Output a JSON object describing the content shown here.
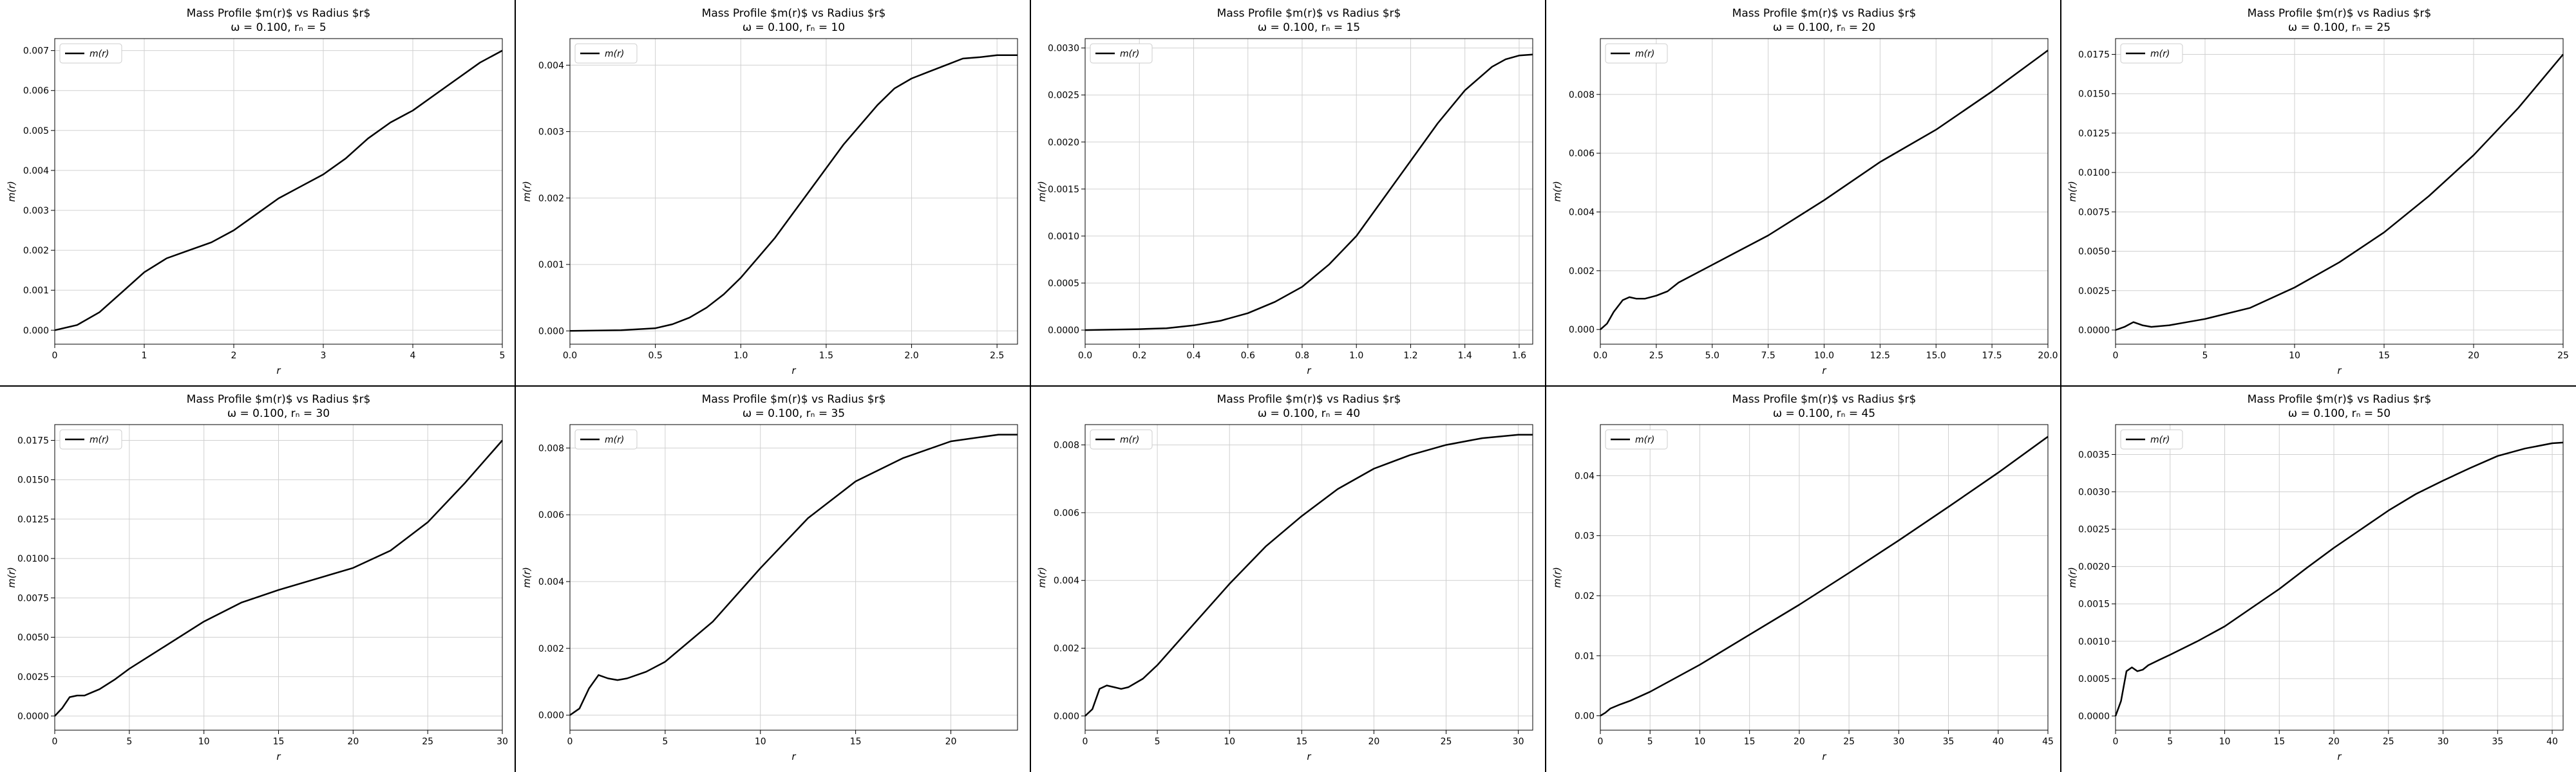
{
  "chart_data": [
    {
      "type": "line",
      "title": "Mass Profile $m(r)$ vs Radius $r$",
      "subtitle": "ω = 0.100, rₙ = 5",
      "xlabel": "r",
      "ylabel": "m(r)",
      "legend": "top-left",
      "grid": true,
      "xlim": [
        0,
        5
      ],
      "ylim": [
        -0.00035,
        0.0073
      ],
      "xticks": [
        0,
        1,
        2,
        3,
        4,
        5
      ],
      "yticks": [
        0.0,
        0.001,
        0.002,
        0.003,
        0.004,
        0.005,
        0.006,
        0.007
      ],
      "ydec": 3,
      "series": [
        {
          "name": "m(r)",
          "x": [
            0,
            0.25,
            0.5,
            0.75,
            1.0,
            1.25,
            1.5,
            1.75,
            2.0,
            2.25,
            2.5,
            2.75,
            3.0,
            3.25,
            3.5,
            3.75,
            4.0,
            4.25,
            4.5,
            4.75,
            5.0
          ],
          "y": [
            0,
            0.00013,
            0.00045,
            0.00095,
            0.00145,
            0.0018,
            0.002,
            0.0022,
            0.0025,
            0.0029,
            0.0033,
            0.0036,
            0.0039,
            0.0043,
            0.0048,
            0.0052,
            0.0055,
            0.0059,
            0.0063,
            0.0067,
            0.007
          ]
        }
      ]
    },
    {
      "type": "line",
      "title": "Mass Profile $m(r)$ vs Radius $r$",
      "subtitle": "ω = 0.100, rₙ = 10",
      "xlabel": "r",
      "ylabel": "m(r)",
      "legend": "top-left",
      "grid": true,
      "xlim": [
        0,
        2.62
      ],
      "ylim": [
        -0.0002,
        0.0044
      ],
      "xticks": [
        0,
        0.5,
        1.0,
        1.5,
        2.0,
        2.5
      ],
      "yticks": [
        0.0,
        0.001,
        0.002,
        0.003,
        0.004
      ],
      "ydec": 3,
      "xdec": 1,
      "series": [
        {
          "name": "m(r)",
          "x": [
            0,
            0.3,
            0.5,
            0.6,
            0.7,
            0.8,
            0.9,
            1.0,
            1.1,
            1.2,
            1.3,
            1.4,
            1.5,
            1.6,
            1.7,
            1.8,
            1.9,
            2.0,
            2.1,
            2.2,
            2.3,
            2.4,
            2.5,
            2.62
          ],
          "y": [
            0,
            1e-05,
            4e-05,
            0.0001,
            0.0002,
            0.00035,
            0.00055,
            0.0008,
            0.0011,
            0.0014,
            0.00175,
            0.0021,
            0.00245,
            0.0028,
            0.0031,
            0.0034,
            0.00365,
            0.0038,
            0.0039,
            0.004,
            0.0041,
            0.00412,
            0.00415,
            0.00415
          ]
        }
      ]
    },
    {
      "type": "line",
      "title": "Mass Profile $m(r)$ vs Radius $r$",
      "subtitle": "ω = 0.100, rₙ = 15",
      "xlabel": "r",
      "ylabel": "m(r)",
      "legend": "top-left",
      "grid": true,
      "xlim": [
        0,
        1.65
      ],
      "ylim": [
        -0.00015,
        0.0031
      ],
      "xticks": [
        0,
        0.2,
        0.4,
        0.6,
        0.8,
        1.0,
        1.2,
        1.4,
        1.6
      ],
      "yticks": [
        0.0,
        0.0005,
        0.001,
        0.0015,
        0.002,
        0.0025,
        0.003
      ],
      "ydec": 4,
      "xdec": 1,
      "series": [
        {
          "name": "m(r)",
          "x": [
            0,
            0.2,
            0.3,
            0.4,
            0.5,
            0.6,
            0.7,
            0.8,
            0.9,
            1.0,
            1.1,
            1.2,
            1.3,
            1.4,
            1.5,
            1.55,
            1.6,
            1.65
          ],
          "y": [
            0,
            1e-05,
            2e-05,
            5e-05,
            0.0001,
            0.00018,
            0.0003,
            0.00046,
            0.0007,
            0.001,
            0.0014,
            0.0018,
            0.0022,
            0.00255,
            0.0028,
            0.00288,
            0.00292,
            0.00293
          ]
        }
      ]
    },
    {
      "type": "line",
      "title": "Mass Profile $m(r)$ vs Radius $r$",
      "subtitle": "ω = 0.100, rₙ = 20",
      "xlabel": "r",
      "ylabel": "m(r)",
      "legend": "top-left",
      "grid": true,
      "xlim": [
        0,
        20
      ],
      "ylim": [
        -0.0005,
        0.0099
      ],
      "xticks": [
        0.0,
        2.5,
        5.0,
        7.5,
        10.0,
        12.5,
        15.0,
        17.5,
        20.0
      ],
      "yticks": [
        0.0,
        0.002,
        0.004,
        0.006,
        0.008
      ],
      "ydec": 3,
      "xdec": 1,
      "series": [
        {
          "name": "m(r)",
          "x": [
            0,
            0.3,
            0.6,
            1.0,
            1.3,
            1.6,
            2.0,
            2.5,
            3.0,
            3.5,
            4.0,
            5.0,
            6.0,
            7.5,
            10.0,
            12.5,
            15.0,
            17.5,
            20.0
          ],
          "y": [
            0,
            0.0002,
            0.0006,
            0.001,
            0.0011,
            0.00105,
            0.00105,
            0.00115,
            0.0013,
            0.0016,
            0.0018,
            0.0022,
            0.0026,
            0.0032,
            0.0044,
            0.0057,
            0.0068,
            0.0081,
            0.0095
          ]
        }
      ]
    },
    {
      "type": "line",
      "title": "Mass Profile $m(r)$ vs Radius $r$",
      "subtitle": "ω = 0.100, rₙ = 25",
      "xlabel": "r",
      "ylabel": "m(r)",
      "legend": "top-left",
      "grid": true,
      "xlim": [
        0,
        25
      ],
      "ylim": [
        -0.0009,
        0.0185
      ],
      "xticks": [
        0,
        5,
        10,
        15,
        20,
        25
      ],
      "yticks": [
        0.0,
        0.0025,
        0.005,
        0.0075,
        0.01,
        0.0125,
        0.015,
        0.0175
      ],
      "ydec": 4,
      "series": [
        {
          "name": "m(r)",
          "x": [
            0,
            0.5,
            1.0,
            1.5,
            2.0,
            3.0,
            4.0,
            5.0,
            7.5,
            10.0,
            12.5,
            15.0,
            17.5,
            20.0,
            22.5,
            25.0
          ],
          "y": [
            0,
            0.0002,
            0.0005,
            0.0003,
            0.0002,
            0.0003,
            0.0005,
            0.0007,
            0.0014,
            0.0027,
            0.0043,
            0.0062,
            0.0085,
            0.0111,
            0.0141,
            0.0175
          ]
        }
      ]
    },
    {
      "type": "line",
      "title": "Mass Profile $m(r)$ vs Radius $r$",
      "subtitle": "ω = 0.100, rₙ = 30",
      "xlabel": "r",
      "ylabel": "m(r)",
      "legend": "top-left",
      "grid": true,
      "xlim": [
        0,
        30
      ],
      "ylim": [
        -0.0009,
        0.0185
      ],
      "xticks": [
        0,
        5,
        10,
        15,
        20,
        25,
        30
      ],
      "yticks": [
        0.0,
        0.0025,
        0.005,
        0.0075,
        0.01,
        0.0125,
        0.015,
        0.0175
      ],
      "ydec": 4,
      "series": [
        {
          "name": "m(r)",
          "x": [
            0,
            0.5,
            1.0,
            1.5,
            2.0,
            2.5,
            3.0,
            4.0,
            5.0,
            7.5,
            10.0,
            12.5,
            15.0,
            17.5,
            20.0,
            22.5,
            25.0,
            27.5,
            30.0
          ],
          "y": [
            0,
            0.0005,
            0.0012,
            0.0013,
            0.0013,
            0.0015,
            0.0017,
            0.0023,
            0.003,
            0.0045,
            0.006,
            0.0072,
            0.008,
            0.0087,
            0.0094,
            0.0105,
            0.0123,
            0.0148,
            0.0175
          ]
        }
      ]
    },
    {
      "type": "line",
      "title": "Mass Profile $m(r)$ vs Radius $r$",
      "subtitle": "ω = 0.100, rₙ = 35",
      "xlabel": "r",
      "ylabel": "m(r)",
      "legend": "top-left",
      "grid": true,
      "xlim": [
        0,
        23.5
      ],
      "ylim": [
        -0.00045,
        0.0087
      ],
      "xticks": [
        0,
        5,
        10,
        15,
        20
      ],
      "yticks": [
        0.0,
        0.002,
        0.004,
        0.006,
        0.008
      ],
      "ydec": 3,
      "series": [
        {
          "name": "m(r)",
          "x": [
            0,
            0.5,
            1.0,
            1.5,
            2.0,
            2.5,
            3.0,
            4.0,
            5.0,
            7.5,
            10.0,
            12.5,
            15.0,
            17.5,
            20.0,
            22.5,
            23.5
          ],
          "y": [
            0,
            0.0002,
            0.0008,
            0.0012,
            0.0011,
            0.00105,
            0.0011,
            0.0013,
            0.0016,
            0.0028,
            0.0044,
            0.0059,
            0.007,
            0.0077,
            0.0082,
            0.0084,
            0.0084
          ]
        }
      ]
    },
    {
      "type": "line",
      "title": "Mass Profile $m(r)$ vs Radius $r$",
      "subtitle": "ω = 0.100, rₙ = 40",
      "xlabel": "r",
      "ylabel": "m(r)",
      "legend": "top-left",
      "grid": true,
      "xlim": [
        0,
        31
      ],
      "ylim": [
        -0.00042,
        0.0086
      ],
      "xticks": [
        0,
        5,
        10,
        15,
        20,
        25,
        30
      ],
      "yticks": [
        0.0,
        0.002,
        0.004,
        0.006,
        0.008
      ],
      "ydec": 3,
      "series": [
        {
          "name": "m(r)",
          "x": [
            0,
            0.5,
            1.0,
            1.5,
            2.0,
            2.5,
            3.0,
            4.0,
            5.0,
            7.5,
            10.0,
            12.5,
            15.0,
            17.5,
            20.0,
            22.5,
            25.0,
            27.5,
            30.0,
            31.0
          ],
          "y": [
            0,
            0.0002,
            0.0008,
            0.0009,
            0.00085,
            0.0008,
            0.00085,
            0.0011,
            0.0015,
            0.0027,
            0.0039,
            0.005,
            0.0059,
            0.0067,
            0.0073,
            0.0077,
            0.008,
            0.0082,
            0.0083,
            0.0083
          ]
        }
      ]
    },
    {
      "type": "line",
      "title": "Mass Profile $m(r)$ vs Radius $r$",
      "subtitle": "ω = 0.100, rₙ = 45",
      "xlabel": "r",
      "ylabel": "m(r)",
      "legend": "top-left",
      "grid": true,
      "xlim": [
        0,
        45
      ],
      "ylim": [
        -0.0024,
        0.0485
      ],
      "xticks": [
        0,
        5,
        10,
        15,
        20,
        25,
        30,
        35,
        40,
        45
      ],
      "yticks": [
        0.0,
        0.01,
        0.02,
        0.03,
        0.04
      ],
      "ydec": 2,
      "series": [
        {
          "name": "m(r)",
          "x": [
            0,
            0.5,
            1.0,
            2.0,
            3.0,
            5.0,
            10.0,
            15.0,
            20.0,
            25.0,
            30.0,
            35.0,
            40.0,
            45.0
          ],
          "y": [
            0,
            0.0005,
            0.0012,
            0.0019,
            0.0025,
            0.004,
            0.0085,
            0.0135,
            0.0185,
            0.0238,
            0.0292,
            0.0348,
            0.0405,
            0.0465
          ]
        }
      ]
    },
    {
      "type": "line",
      "title": "Mass Profile $m(r)$ vs Radius $r$",
      "subtitle": "ω = 0.100, rₙ = 50",
      "xlabel": "r",
      "ylabel": "m(r)",
      "legend": "top-left",
      "grid": true,
      "xlim": [
        0,
        41
      ],
      "ylim": [
        -0.00019,
        0.0039
      ],
      "xticks": [
        0,
        5,
        10,
        15,
        20,
        25,
        30,
        35,
        40
      ],
      "yticks": [
        0.0,
        0.0005,
        0.001,
        0.0015,
        0.002,
        0.0025,
        0.003,
        0.0035
      ],
      "ydec": 4,
      "series": [
        {
          "name": "m(r)",
          "x": [
            0,
            0.5,
            1.0,
            1.5,
            2.0,
            2.5,
            3.0,
            4.0,
            5.0,
            7.5,
            10.0,
            12.5,
            15.0,
            17.5,
            20.0,
            22.5,
            25.0,
            27.5,
            30.0,
            32.5,
            35.0,
            37.5,
            40.0,
            41.0
          ],
          "y": [
            0,
            0.0002,
            0.0006,
            0.00065,
            0.0006,
            0.00062,
            0.00068,
            0.00075,
            0.00082,
            0.001,
            0.0012,
            0.00145,
            0.0017,
            0.00198,
            0.00225,
            0.0025,
            0.00275,
            0.00297,
            0.00315,
            0.00332,
            0.00348,
            0.00358,
            0.00365,
            0.00366
          ]
        }
      ]
    }
  ]
}
